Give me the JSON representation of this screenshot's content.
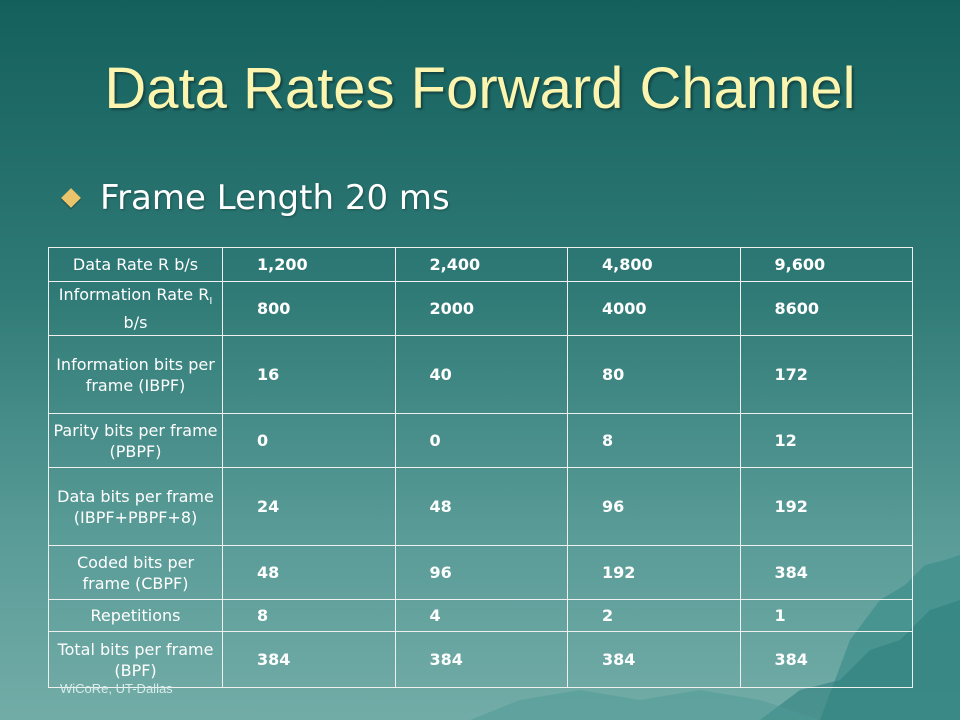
{
  "slide": {
    "title": "Data Rates Forward Channel",
    "bullet": "Frame Length 20 ms",
    "footer": "WiCoRe, UT-Dallas"
  },
  "table": {
    "rows": [
      {
        "label": "Data Rate R b/s",
        "values": [
          "1,200",
          "2,400",
          "4,800",
          "9,600"
        ]
      },
      {
        "label_prefix": "Information Rate R",
        "label_sub": "I",
        "label_suffix": " b/s",
        "values": [
          "800",
          "2000",
          "4000",
          "8600"
        ]
      },
      {
        "label": "Information bits per frame (IBPF)",
        "values": [
          "16",
          "40",
          "80",
          "172"
        ]
      },
      {
        "label": "Parity bits per frame (PBPF)",
        "values": [
          "0",
          "0",
          "8",
          "12"
        ]
      },
      {
        "label": "Data bits per frame (IBPF+PBPF+8)",
        "values": [
          "24",
          "48",
          "96",
          "192"
        ]
      },
      {
        "label": "Coded bits per frame (CBPF)",
        "values": [
          "48",
          "96",
          "192",
          "384"
        ]
      },
      {
        "label": "Repetitions",
        "values": [
          "8",
          "4",
          "2",
          "1"
        ]
      },
      {
        "label": "Total bits per frame (BPF)",
        "values": [
          "384",
          "384",
          "384",
          "384"
        ]
      }
    ]
  }
}
